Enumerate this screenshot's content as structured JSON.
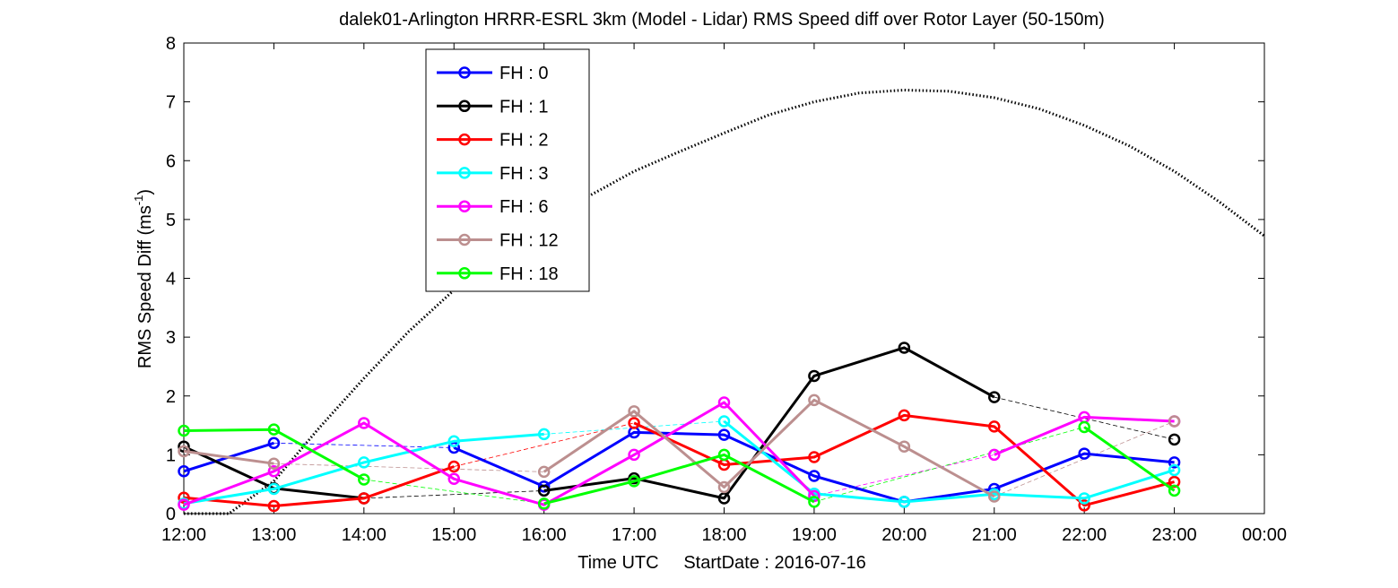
{
  "chart_data": {
    "type": "line",
    "title": "dalek01-Arlington HRRR-ESRL 3km (Model - Lidar) RMS Speed diff over Rotor Layer (50-150m)",
    "xlabel": "Time UTC     StartDate : 2016-07-16",
    "ylabel_main": "RMS Speed Diff (ms",
    "ylabel_sup": "-1",
    "ylabel_close": ")",
    "x_ticks": [
      "12:00",
      "13:00",
      "14:00",
      "15:00",
      "16:00",
      "17:00",
      "18:00",
      "19:00",
      "20:00",
      "21:00",
      "22:00",
      "23:00",
      "00:00"
    ],
    "y_ticks": [
      "0",
      "1",
      "2",
      "3",
      "4",
      "5",
      "6",
      "7",
      "8"
    ],
    "xlim": [
      12,
      24
    ],
    "ylim": [
      0,
      8
    ],
    "grid": false,
    "legend_position": "top-left",
    "series": [
      {
        "name": "FH : 0",
        "color": "#0000ff",
        "values": [
          0.72,
          1.2,
          null,
          1.12,
          0.46,
          1.38,
          1.34,
          0.64,
          0.2,
          0.42,
          1.02,
          0.87
        ]
      },
      {
        "name": "FH : 1",
        "color": "#000000",
        "values": [
          1.14,
          0.43,
          0.26,
          null,
          0.39,
          0.6,
          0.26,
          2.34,
          2.82,
          1.98,
          null,
          1.26
        ]
      },
      {
        "name": "FH : 2",
        "color": "#ff0000",
        "values": [
          0.27,
          0.13,
          0.26,
          0.8,
          null,
          1.54,
          0.83,
          0.96,
          1.67,
          1.48,
          0.14,
          0.54
        ]
      },
      {
        "name": "FH : 3",
        "color": "#00ffff",
        "values": [
          0.17,
          0.42,
          0.87,
          1.23,
          1.35,
          null,
          1.57,
          0.34,
          0.2,
          0.33,
          0.26,
          0.74
        ]
      },
      {
        "name": "FH : 6",
        "color": "#ff00ff",
        "values": [
          0.15,
          0.72,
          1.54,
          0.59,
          0.15,
          1.0,
          1.89,
          0.3,
          null,
          1.0,
          1.64,
          1.57
        ]
      },
      {
        "name": "FH : 12",
        "color": "#bc8f8f",
        "values": [
          1.06,
          0.85,
          null,
          null,
          0.71,
          1.74,
          0.45,
          1.93,
          1.14,
          0.29,
          null,
          1.57
        ]
      },
      {
        "name": "FH : 18",
        "color": "#00ff00",
        "values": [
          1.41,
          1.43,
          0.58,
          null,
          0.17,
          0.55,
          1.0,
          0.2,
          null,
          null,
          1.47,
          0.39
        ]
      }
    ],
    "curve": {
      "style": "dotted",
      "color": "#000000",
      "x": [
        12.0,
        12.5,
        13.0,
        13.5,
        14.0,
        14.5,
        15.0,
        15.5,
        16.0,
        16.5,
        17.0,
        17.5,
        18.0,
        18.5,
        19.0,
        19.5,
        20.0,
        20.5,
        21.0,
        21.5,
        22.0,
        22.5,
        23.0,
        23.5,
        24.0
      ],
      "y": [
        0.0,
        0.0,
        0.55,
        1.45,
        2.3,
        3.1,
        3.8,
        4.45,
        4.95,
        5.4,
        5.82,
        6.15,
        6.47,
        6.78,
        7.0,
        7.15,
        7.2,
        7.18,
        7.07,
        6.88,
        6.6,
        6.25,
        5.82,
        5.3,
        4.72
      ]
    }
  }
}
